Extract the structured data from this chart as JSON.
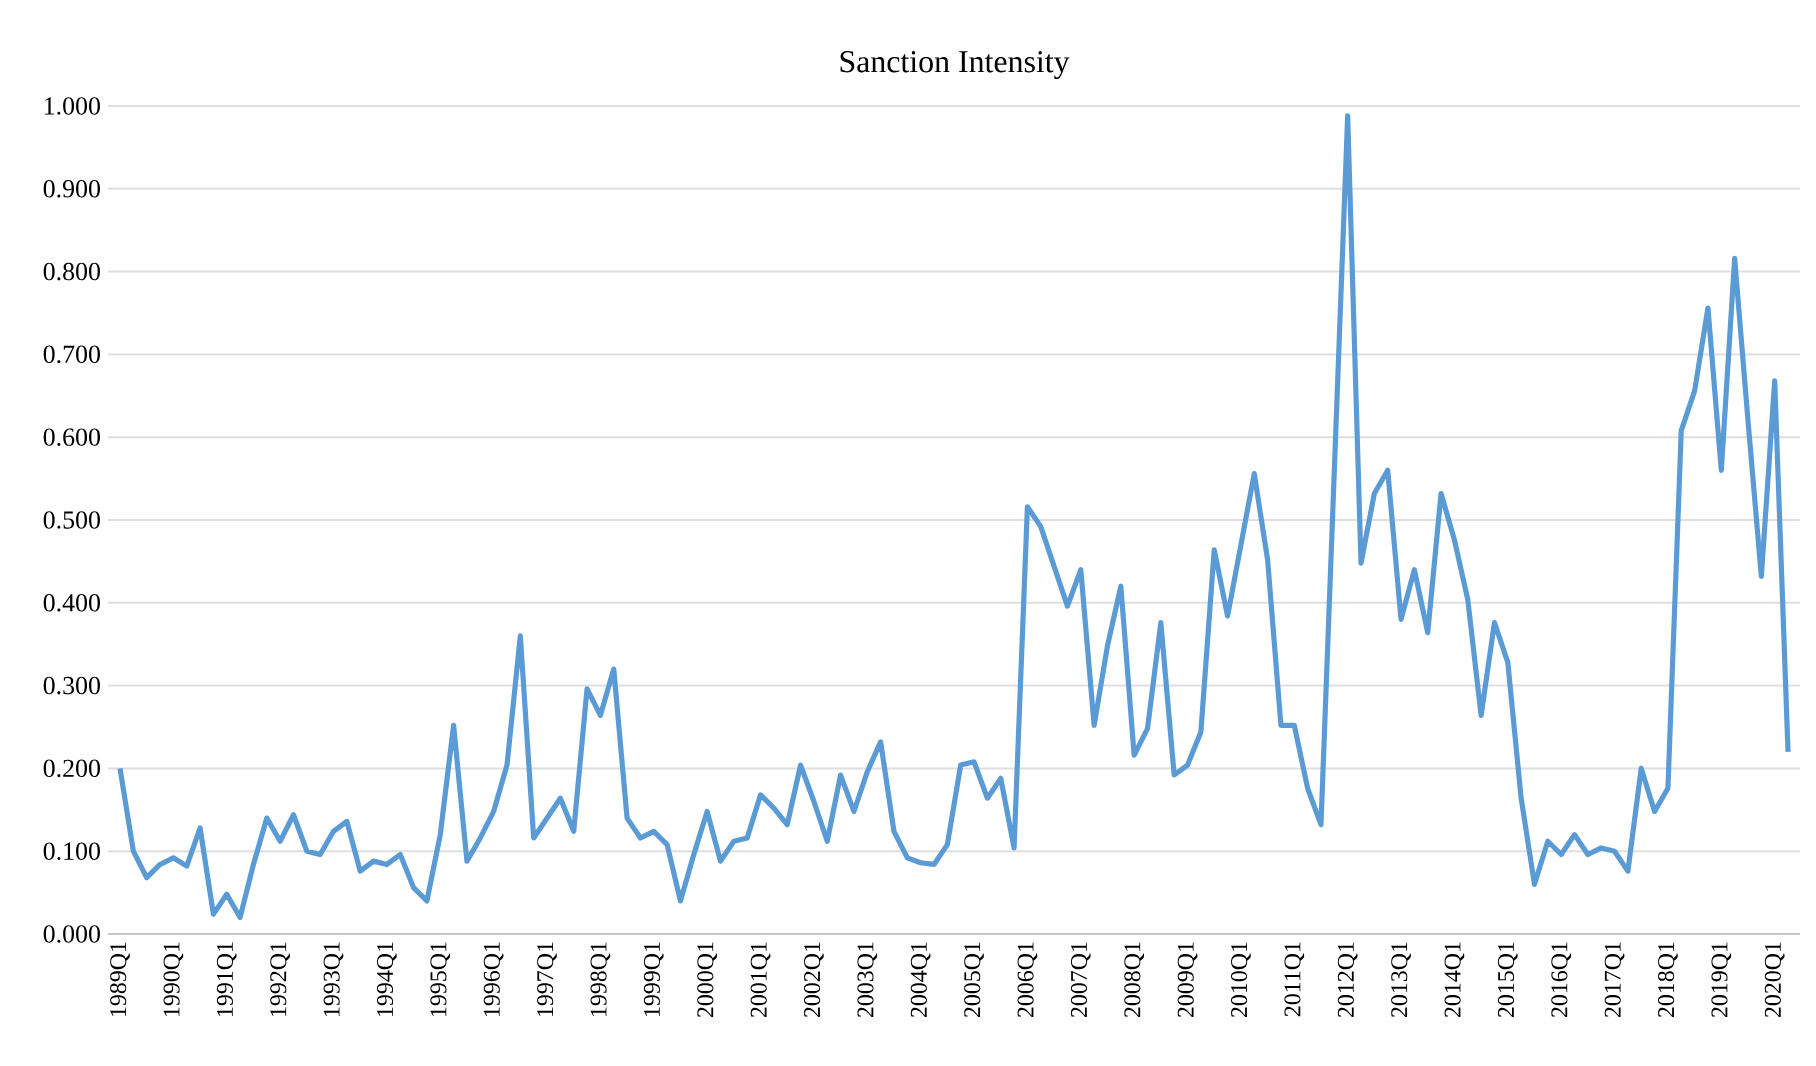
{
  "chart_data": {
    "type": "line",
    "title": "Sanction Intensity",
    "categories": [
      "1989Q1",
      null,
      null,
      null,
      "1990Q1",
      null,
      null,
      null,
      "1991Q1",
      null,
      null,
      null,
      "1992Q1",
      null,
      null,
      null,
      "1993Q1",
      null,
      null,
      null,
      "1994Q1",
      null,
      null,
      null,
      "1995Q1",
      null,
      null,
      null,
      "1996Q1",
      null,
      null,
      null,
      "1997Q1",
      null,
      null,
      null,
      "1998Q1",
      null,
      null,
      null,
      "1999Q1",
      null,
      null,
      null,
      "2000Q1",
      null,
      null,
      null,
      "2001Q1",
      null,
      null,
      null,
      "2002Q1",
      null,
      null,
      null,
      "2003Q1",
      null,
      null,
      null,
      "2004Q1",
      null,
      null,
      null,
      "2005Q1",
      null,
      null,
      null,
      "2006Q1",
      null,
      null,
      null,
      "2007Q1",
      null,
      null,
      null,
      "2008Q1",
      null,
      null,
      null,
      "2009Q1",
      null,
      null,
      null,
      "2010Q1",
      null,
      null,
      null,
      "2011Q1",
      null,
      null,
      null,
      "2012Q1",
      null,
      null,
      null,
      "2013Q1",
      null,
      null,
      null,
      "2014Q1",
      null,
      null,
      null,
      "2015Q1",
      null,
      null,
      null,
      "2016Q1",
      null,
      null,
      null,
      "2017Q1",
      null,
      null,
      null,
      "2018Q1",
      null,
      null,
      null,
      "2019Q1",
      null,
      null,
      null,
      "2020Q1",
      null
    ],
    "values": [
      0.2,
      0.1,
      0.068,
      0.084,
      0.092,
      0.082,
      0.128,
      0.024,
      0.048,
      0.02,
      0.084,
      0.14,
      0.112,
      0.144,
      0.1,
      0.096,
      0.124,
      0.136,
      0.076,
      0.088,
      0.084,
      0.096,
      0.056,
      0.04,
      0.12,
      0.252,
      0.088,
      0.116,
      0.148,
      0.204,
      0.36,
      0.116,
      0.14,
      0.164,
      0.124,
      0.296,
      0.264,
      0.32,
      0.14,
      0.116,
      0.124,
      0.108,
      0.04,
      0.096,
      0.148,
      0.088,
      0.112,
      0.116,
      0.168,
      0.152,
      0.132,
      0.204,
      0.16,
      0.112,
      0.192,
      0.148,
      0.196,
      0.232,
      0.124,
      0.092,
      0.086,
      0.084,
      0.108,
      0.204,
      0.208,
      0.164,
      0.188,
      0.104,
      0.516,
      0.492,
      0.444,
      0.396,
      0.44,
      0.252,
      0.348,
      0.42,
      0.216,
      0.248,
      0.376,
      0.192,
      0.204,
      0.244,
      0.464,
      0.384,
      0.47,
      0.556,
      0.452,
      0.252,
      0.252,
      0.176,
      0.132,
      0.56,
      0.988,
      0.448,
      0.532,
      0.56,
      0.38,
      0.44,
      0.364,
      0.532,
      0.476,
      0.404,
      0.264,
      0.376,
      0.328,
      0.164,
      0.06,
      0.112,
      0.096,
      0.12,
      0.096,
      0.104,
      0.1,
      0.076,
      0.2,
      0.148,
      0.176,
      0.608,
      0.656,
      0.756,
      0.56,
      0.816,
      0.62,
      0.432,
      0.668,
      0.22
    ],
    "color": "#5b9bd5",
    "ylim": [
      0,
      1
    ],
    "yticks": [
      {
        "value": 0,
        "label": "0.000"
      },
      {
        "value": 0.1,
        "label": "0.100"
      },
      {
        "value": 0.2,
        "label": "0.200"
      },
      {
        "value": 0.3,
        "label": "0.300"
      },
      {
        "value": 0.4,
        "label": "0.400"
      },
      {
        "value": 0.5,
        "label": "0.500"
      },
      {
        "value": 0.6,
        "label": "0.600"
      },
      {
        "value": 0.7,
        "label": "0.700"
      },
      {
        "value": 0.8,
        "label": "0.800"
      },
      {
        "value": 0.9,
        "label": "0.900"
      },
      {
        "value": 1,
        "label": "1.000"
      }
    ],
    "grid": "y"
  }
}
